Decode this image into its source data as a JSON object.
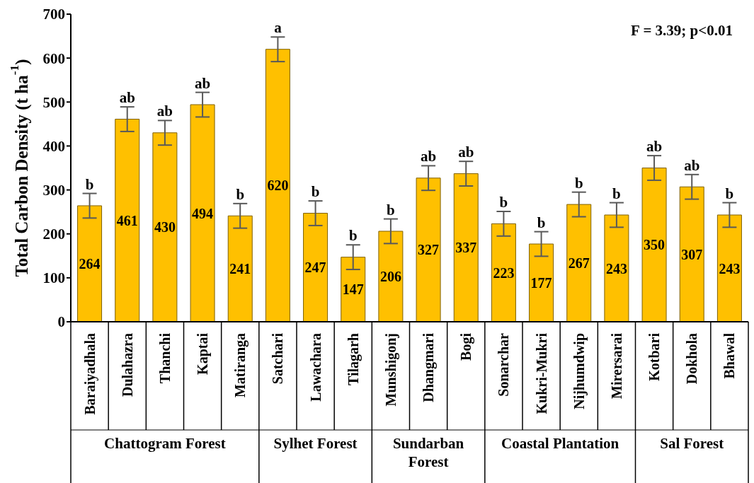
{
  "chart_data": {
    "type": "bar",
    "ylabel": "Total Carbon Density (t ha$^{-1}$)",
    "categories": [
      "Baraiyadhala",
      "Dulahazra",
      "Thanchi",
      "Kaptai",
      "Matiranga",
      "Satchari",
      "Lawachara",
      "Tilagarh",
      "Munshigonj",
      "Dhangmari",
      "Bogi",
      "Sonarchar",
      "Kukri-Mukri",
      "Nijhumdwip",
      "Mirersarai",
      "Kotbari",
      "Dokhola",
      "Bhawal"
    ],
    "values": [
      264,
      461,
      430,
      494,
      241,
      620,
      247,
      147,
      206,
      327,
      337,
      223,
      177,
      267,
      243,
      350,
      307,
      243
    ],
    "errors": [
      28,
      28,
      28,
      28,
      28,
      28,
      28,
      28,
      28,
      28,
      28,
      28,
      28,
      28,
      28,
      28,
      28,
      28
    ],
    "color": "#ffc000",
    "data_labels": true,
    "ylim": [
      0,
      700
    ],
    "yticks": [
      0,
      100,
      200,
      300,
      400,
      500,
      600,
      700
    ],
    "grid": false,
    "legend": false,
    "annotations": [
      "F = 3.39; p<0.01",
      "Chattogram Forest",
      "Sylhet Forest",
      "Sundarban Forest",
      "Coastal Plantation",
      "Sal Forest",
      {
        "text": "b",
        "x": "Baraiyadhala",
        "y": 292
      },
      {
        "text": "ab",
        "x": "Dulahazra",
        "y": 489
      },
      {
        "text": "ab",
        "x": "Thanchi",
        "y": 458
      },
      {
        "text": "ab",
        "x": "Kaptai",
        "y": 522
      },
      {
        "text": "b",
        "x": "Matiranga",
        "y": 269
      },
      {
        "text": "a",
        "x": "Satchari",
        "y": 648
      },
      {
        "text": "b",
        "x": "Lawachara",
        "y": 275
      },
      {
        "text": "b",
        "x": "Tilagarh",
        "y": 175
      },
      {
        "text": "b",
        "x": "Munshigonj",
        "y": 234
      },
      {
        "text": "ab",
        "x": "Dhangmari",
        "y": 355
      },
      {
        "text": "ab",
        "x": "Bogi",
        "y": 365
      },
      {
        "text": "b",
        "x": "Sonarchar",
        "y": 251
      },
      {
        "text": "b",
        "x": "Kukri-Mukri",
        "y": 205
      },
      {
        "text": "b",
        "x": "Nijhumdwip",
        "y": 295
      },
      {
        "text": "b",
        "x": "Mirersarai",
        "y": 271
      },
      {
        "text": "ab",
        "x": "Kotbari",
        "y": 378
      },
      {
        "text": "ab",
        "x": "Dokhola",
        "y": 335
      },
      {
        "text": "b",
        "x": "Bhawal",
        "y": 271
      }
    ]
  }
}
